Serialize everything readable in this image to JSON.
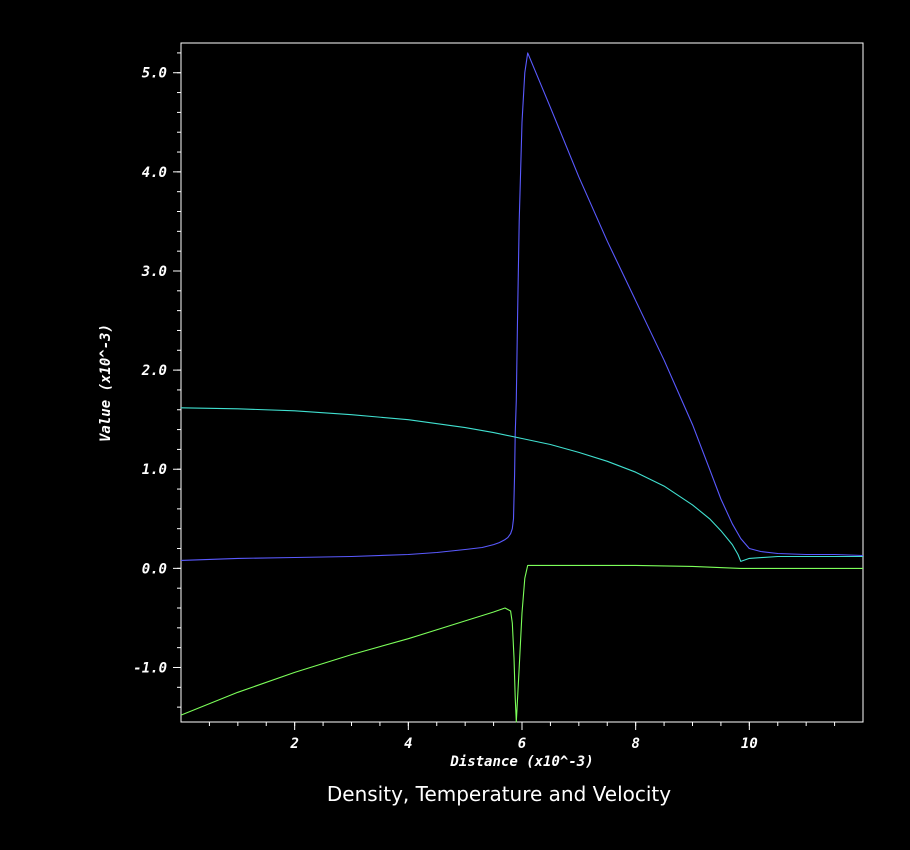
{
  "caption": "Density, Temperature and Velocity",
  "chart_data": {
    "type": "line",
    "title": "Density, Temperature and Velocity",
    "xlabel": "Distance (x10^-3)",
    "ylabel": "Value (x10^-3)",
    "xlim": [
      0.0,
      12.0
    ],
    "ylim": [
      -1.55,
      5.3
    ],
    "x_ticks": [
      {
        "value": 2,
        "label": "2"
      },
      {
        "value": 4,
        "label": "4"
      },
      {
        "value": 6,
        "label": "6"
      },
      {
        "value": 8,
        "label": "8"
      },
      {
        "value": 10,
        "label": "10"
      }
    ],
    "y_ticks": [
      {
        "value": -1.0,
        "label": "-1.0"
      },
      {
        "value": 0.0,
        "label": "0.0"
      },
      {
        "value": 1.0,
        "label": "1.0"
      },
      {
        "value": 2.0,
        "label": "2.0"
      },
      {
        "value": 3.0,
        "label": "3.0"
      },
      {
        "value": 4.0,
        "label": "4.0"
      },
      {
        "value": 5.0,
        "label": "5.0"
      }
    ],
    "grid": false,
    "colors": {
      "background": "#000000",
      "axis": "#ffffff"
    },
    "series": [
      {
        "color": "#5a5aff",
        "x": [
          0.0,
          1.0,
          2.0,
          3.0,
          4.0,
          4.5,
          5.0,
          5.3,
          5.5,
          5.6,
          5.7,
          5.75,
          5.8,
          5.83,
          5.85,
          5.87,
          5.88,
          5.9,
          5.92,
          5.95,
          6.0,
          6.05,
          6.1,
          6.5,
          7.0,
          7.5,
          8.0,
          8.5,
          9.0,
          9.3,
          9.5,
          9.7,
          9.85,
          10.0,
          10.2,
          10.5,
          11.0,
          11.5,
          12.0
        ],
        "y": [
          0.08,
          0.1,
          0.11,
          0.12,
          0.14,
          0.16,
          0.19,
          0.21,
          0.24,
          0.26,
          0.29,
          0.31,
          0.35,
          0.4,
          0.5,
          0.95,
          1.35,
          1.7,
          2.5,
          3.5,
          4.5,
          5.0,
          5.2,
          4.65,
          3.95,
          3.3,
          2.7,
          2.1,
          1.45,
          1.0,
          0.7,
          0.45,
          0.3,
          0.2,
          0.17,
          0.15,
          0.14,
          0.14,
          0.13
        ]
      },
      {
        "color": "#40e0d0",
        "x": [
          0.0,
          1.0,
          2.0,
          3.0,
          4.0,
          5.0,
          5.5,
          6.0,
          6.5,
          7.0,
          7.5,
          8.0,
          8.5,
          9.0,
          9.3,
          9.5,
          9.7,
          9.8,
          9.85,
          10.0,
          10.5,
          11.0,
          12.0
        ],
        "y": [
          1.62,
          1.61,
          1.59,
          1.55,
          1.5,
          1.42,
          1.37,
          1.31,
          1.25,
          1.17,
          1.08,
          0.97,
          0.83,
          0.64,
          0.5,
          0.38,
          0.24,
          0.14,
          0.07,
          0.1,
          0.12,
          0.12,
          0.12
        ]
      },
      {
        "color": "#7cff5a",
        "x": [
          0.0,
          1.0,
          2.0,
          3.0,
          4.0,
          5.0,
          5.5,
          5.7,
          5.8,
          5.83,
          5.86,
          5.88,
          5.9,
          5.95,
          6.0,
          6.05,
          6.1,
          7.0,
          8.0,
          9.0,
          9.85,
          10.5,
          12.0
        ],
        "y": [
          -1.48,
          -1.25,
          -1.05,
          -0.87,
          -0.71,
          -0.53,
          -0.44,
          -0.4,
          -0.43,
          -0.55,
          -0.9,
          -1.3,
          -1.55,
          -1.0,
          -0.45,
          -0.1,
          0.03,
          0.03,
          0.03,
          0.02,
          0.0,
          0.0,
          0.0
        ]
      }
    ]
  }
}
